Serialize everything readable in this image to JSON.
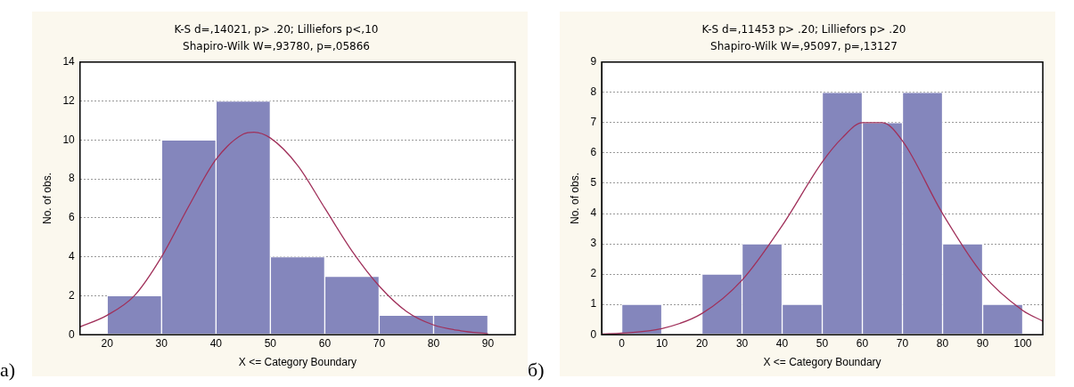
{
  "chart_data": [
    {
      "type": "histogram",
      "title": "K-S d=,14021, p> .20; Lilliefors p<,10",
      "subtitle": "Shapiro-Wilk W=,93780, p=,05866",
      "xlabel": "X <= Category Boundary",
      "ylabel": "No. of obs.",
      "annotations": [
        "а)"
      ],
      "bins": [
        20,
        30,
        40,
        50,
        60,
        70,
        80,
        90
      ],
      "values": [
        2,
        10,
        12,
        4,
        3,
        1,
        1
      ],
      "color": "#8486bc",
      "xlim": [
        15,
        95
      ],
      "xticks": [
        20,
        30,
        40,
        50,
        60,
        70,
        80,
        90
      ],
      "ylim": [
        0,
        14
      ],
      "yticks": [
        0,
        2,
        4,
        6,
        8,
        10,
        12,
        14
      ],
      "grid": "y",
      "series": [
        {
          "type": "line",
          "color": "#a0305a",
          "x": [
            15,
            20,
            25,
            30,
            35,
            40,
            45,
            47,
            50,
            55,
            60,
            65,
            70,
            75,
            80,
            85,
            90
          ],
          "values": [
            0.4,
            1.0,
            2.0,
            4.0,
            6.6,
            9.0,
            10.3,
            10.4,
            10.1,
            8.7,
            6.5,
            4.3,
            2.5,
            1.2,
            0.5,
            0.2,
            0.05
          ]
        }
      ]
    },
    {
      "type": "histogram",
      "title": "K-S d=,11453 p> .20; Lilliefors p> .20",
      "subtitle": "Shapiro-Wilk W=,95097, p=,13127",
      "xlabel": "X <= Category Boundary",
      "ylabel": "No. of obs.",
      "annotations": [
        "б)"
      ],
      "bins": [
        0,
        10,
        20,
        30,
        40,
        50,
        60,
        70,
        80,
        90,
        100
      ],
      "values": [
        1,
        0,
        2,
        3,
        1,
        8,
        7,
        8,
        3,
        1
      ],
      "color": "#8486bc",
      "xlim": [
        -5,
        105
      ],
      "xticks": [
        0,
        10,
        20,
        30,
        40,
        50,
        60,
        70,
        80,
        90,
        100
      ],
      "ylim": [
        0,
        9
      ],
      "yticks": [
        0,
        1,
        2,
        3,
        4,
        5,
        6,
        7,
        8,
        9
      ],
      "grid": "y",
      "series": [
        {
          "type": "line",
          "color": "#a0305a",
          "x": [
            -5,
            0,
            10,
            20,
            30,
            40,
            50,
            55,
            60,
            65,
            70,
            80,
            90,
            100,
            105
          ],
          "values": [
            0.02,
            0.05,
            0.2,
            0.7,
            1.8,
            3.6,
            5.7,
            6.5,
            7.0,
            7.0,
            6.4,
            4.0,
            2.0,
            0.8,
            0.45
          ]
        }
      ]
    }
  ]
}
